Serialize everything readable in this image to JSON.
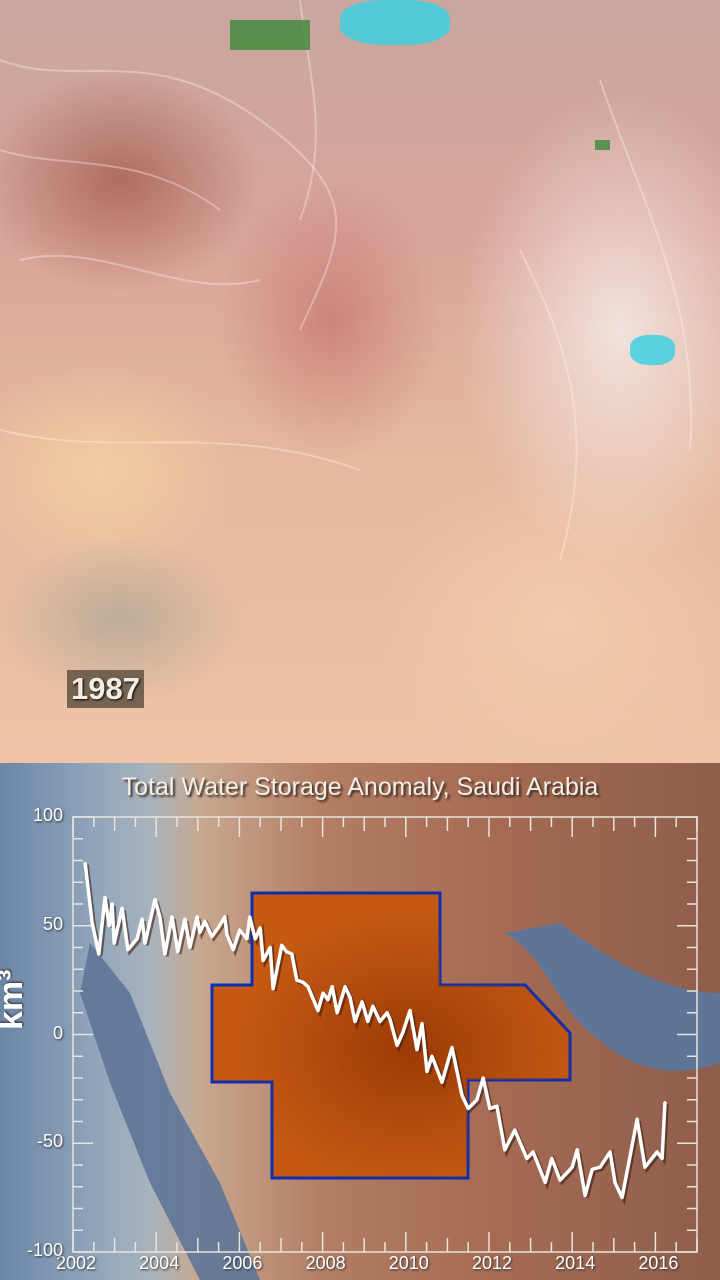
{
  "image": {
    "year_label": "1987"
  },
  "colors": {
    "line": "#ffffff",
    "region_fill": "#c65a14",
    "region_border": "#0a2fb0",
    "water": "#5e7598",
    "axis": "#e8e4de"
  },
  "chart_data": {
    "type": "line",
    "title": "Total Water Storage Anomaly, Saudi Arabia",
    "xlabel": "",
    "ylabel": "km³",
    "xlim": [
      2002,
      2017
    ],
    "ylim": [
      -100,
      100
    ],
    "x_ticks": [
      "2002",
      "2004",
      "2006",
      "2008",
      "2010",
      "2012",
      "2014",
      "2016"
    ],
    "y_ticks": [
      "100",
      "50",
      "0",
      "-50",
      "-100"
    ],
    "grid": false,
    "series": [
      {
        "x": [
          2002.29,
          2002.46,
          2002.62,
          2002.77,
          2002.87,
          2002.94,
          2002.99,
          2003.18,
          2003.32,
          2003.54,
          2003.66,
          2003.73,
          2003.97,
          2004.09,
          2004.21,
          2004.38,
          2004.52,
          2004.69,
          2004.81,
          2004.98,
          2005.05,
          2005.17,
          2005.34,
          2005.49,
          2005.65,
          2005.7,
          2005.85,
          2006.01,
          2006.18,
          2006.25,
          2006.38,
          2006.5,
          2006.57,
          2006.74,
          2006.81,
          2007.02,
          2007.14,
          2007.26,
          2007.38,
          2007.53,
          2007.65,
          2007.89,
          2008.01,
          2008.13,
          2008.23,
          2008.35,
          2008.54,
          2008.66,
          2008.78,
          2008.95,
          2009.09,
          2009.21,
          2009.38,
          2009.55,
          2009.62,
          2009.79,
          2009.93,
          2010.1,
          2010.27,
          2010.39,
          2010.51,
          2010.63,
          2010.87,
          2011.11,
          2011.35,
          2011.5,
          2011.71,
          2011.86,
          2012.02,
          2012.19,
          2012.38,
          2012.62,
          2012.91,
          2013.06,
          2013.35,
          2013.51,
          2013.71,
          2014.0,
          2014.12,
          2014.31,
          2014.48,
          2014.67,
          2014.91,
          2015.03,
          2015.2,
          2015.56,
          2015.75,
          2016.04,
          2016.16,
          2016.23
        ],
        "y": [
          79,
          51.5,
          37,
          63,
          50,
          60,
          42,
          58,
          39,
          44,
          53,
          42,
          62,
          54,
          37,
          54,
          38,
          53,
          40,
          54,
          47,
          52,
          45,
          49,
          54,
          46,
          39,
          48,
          44,
          54,
          44,
          49,
          34,
          40,
          21,
          41,
          38,
          37,
          25,
          24,
          22,
          11,
          19,
          16,
          22,
          10,
          22,
          17,
          6,
          15,
          6,
          13,
          6,
          10,
          7,
          -5,
          1,
          11,
          -7,
          5,
          -17,
          -10,
          -22,
          -6,
          -28,
          -34,
          -30,
          -20,
          -34,
          -33,
          -53,
          -44,
          -57,
          -54,
          -68,
          -57,
          -67,
          -61,
          -53,
          -74,
          -62,
          -61,
          -54,
          -68,
          -75,
          -39,
          -61,
          -54,
          -57,
          -31
        ]
      }
    ]
  }
}
